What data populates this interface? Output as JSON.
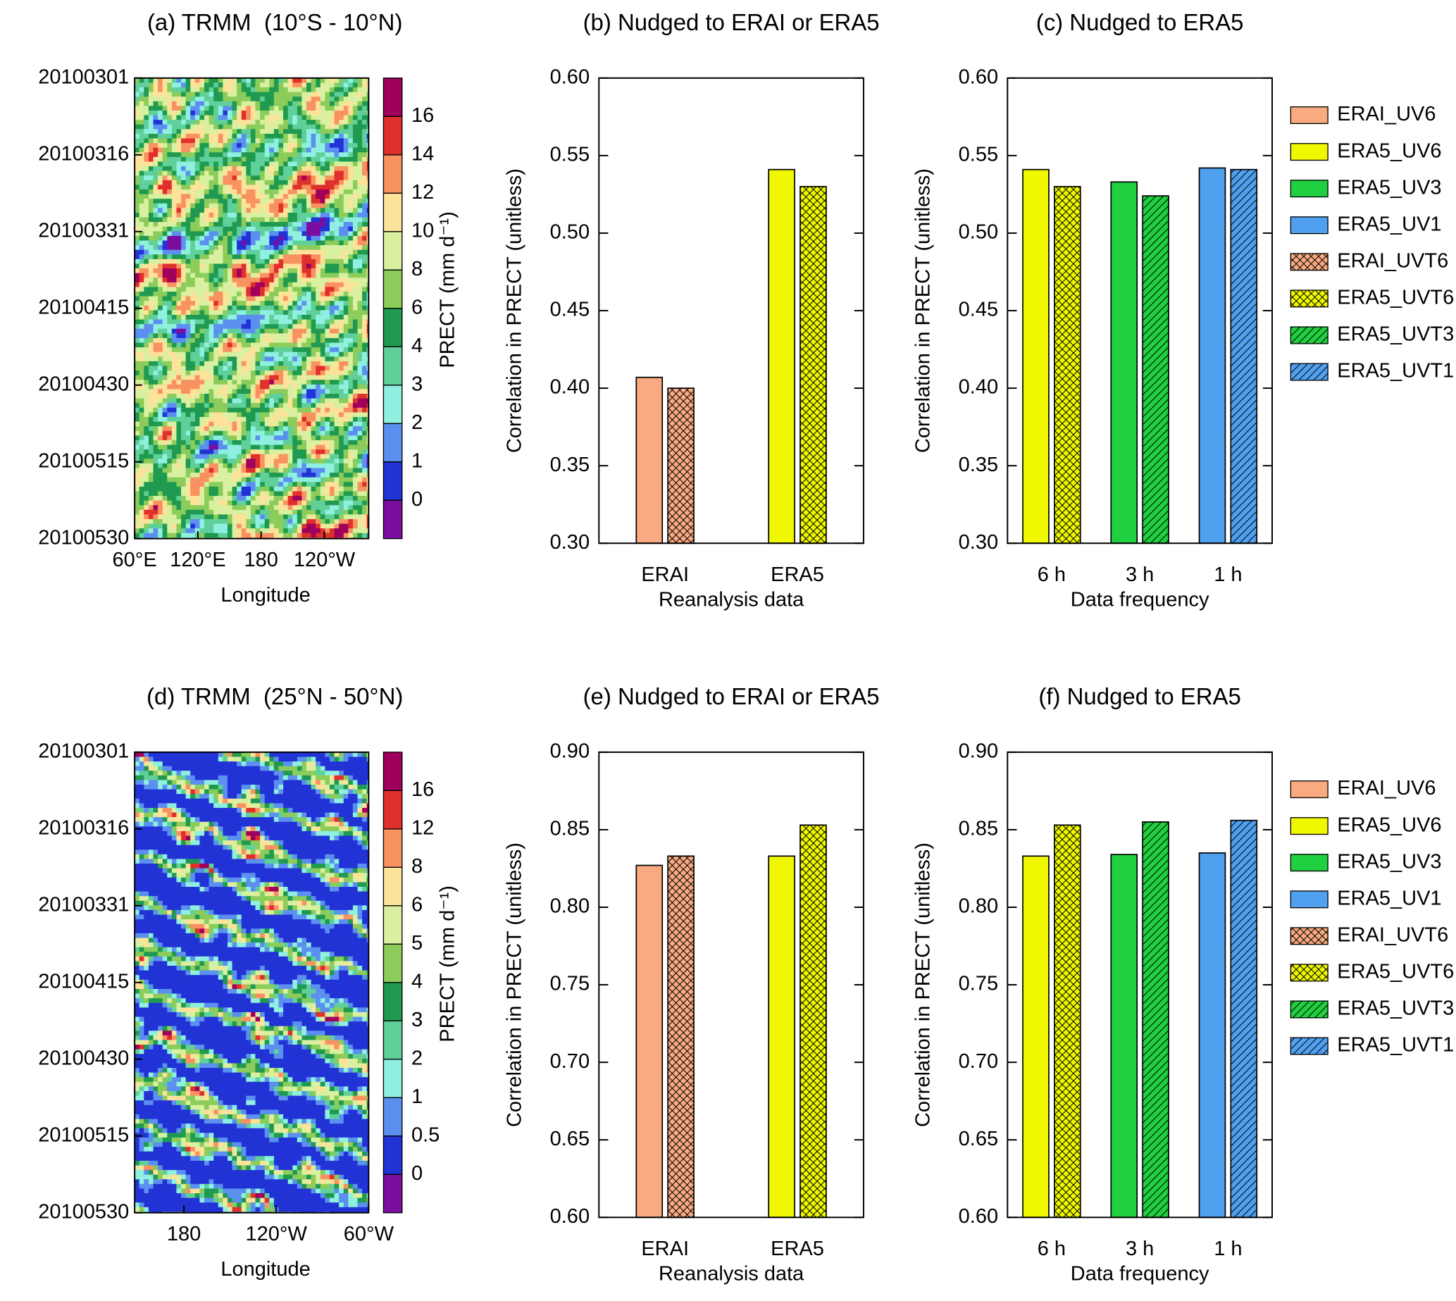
{
  "chart_data": [
    {
      "type": "heatmap",
      "title": "(a) TRMM  (10°S - 10°N)",
      "xlabel": "Longitude",
      "categories": [
        "20100301",
        "20100316",
        "20100331",
        "20100415",
        "20100430",
        "20100515",
        "20100530"
      ],
      "xlim": [
        60,
        282
      ],
      "xticks": [
        {
          "value": 60,
          "label": "60°E"
        },
        {
          "value": 120,
          "label": "120°E"
        },
        180,
        {
          "value": 240,
          "label": "120°W"
        }
      ],
      "colorbar_label": "PRECT (mm d⁻¹)",
      "colorbar_levels": [
        0,
        1,
        2,
        3,
        4,
        6,
        8,
        10,
        12,
        14,
        16
      ],
      "colorbar_colors": [
        "#7b0ea0",
        "#2233d6",
        "#5b8ff0",
        "#8ff0e0",
        "#60d09a",
        "#1f9a50",
        "#8ccc5a",
        "#d8f0a0",
        "#fde29a",
        "#f89260",
        "#e0302c",
        "#a0005c"
      ]
    },
    {
      "type": "bar",
      "title": "(b) Nudged to ERAI or ERA5",
      "xlabel": "Reanalysis data",
      "ylabel": "Correlation in PRECT (unitless)",
      "categories": [
        "ERAI",
        "ERA5"
      ],
      "ylim": [
        0.3,
        0.6
      ],
      "yticks": [
        {
          "value": 0.3,
          "label": "0.30"
        },
        0.35,
        {
          "value": 0.4,
          "label": "0.40"
        },
        0.45,
        {
          "value": 0.5,
          "label": "0.50"
        },
        0.55,
        {
          "value": 0.6,
          "label": "0.60"
        }
      ],
      "series": [
        {
          "name": "ERAI_UV6",
          "color": "#f9aa80",
          "hatch": null,
          "values": [
            0.407,
            null
          ]
        },
        {
          "name": "ERAI_UVT6",
          "color": "#f9aa80",
          "hatch": "cross",
          "values": [
            0.4,
            null
          ]
        },
        {
          "name": "ERA5_UV6",
          "color": "#f0f800",
          "hatch": null,
          "values": [
            null,
            0.541
          ]
        },
        {
          "name": "ERA5_UVT6",
          "color": "#f0f800",
          "hatch": "cross",
          "values": [
            null,
            0.53
          ]
        }
      ]
    },
    {
      "type": "bar",
      "title": "(c) Nudged to ERA5",
      "xlabel": "Data frequency",
      "ylabel": "Correlation in PRECT (unitless)",
      "categories": [
        "6 h",
        "3 h",
        "1 h"
      ],
      "legend": "right",
      "ylim": [
        0.3,
        0.6
      ],
      "yticks": [
        {
          "value": 0.3,
          "label": "0.30"
        },
        0.35,
        {
          "value": 0.4,
          "label": "0.40"
        },
        0.45,
        {
          "value": 0.5,
          "label": "0.50"
        },
        0.55,
        {
          "value": 0.6,
          "label": "0.60"
        }
      ],
      "series": [
        {
          "name": "ERAI_UV6",
          "color": "#f9aa80",
          "hatch": null,
          "values": [
            null,
            null,
            null
          ]
        },
        {
          "name": "ERA5_UV6",
          "color": "#f0f800",
          "hatch": null,
          "values": [
            0.541,
            null,
            null
          ]
        },
        {
          "name": "ERA5_UV3",
          "color": "#20d040",
          "hatch": null,
          "values": [
            null,
            0.533,
            null
          ]
        },
        {
          "name": "ERA5_UV1",
          "color": "#50a0f0",
          "hatch": null,
          "values": [
            null,
            null,
            0.542
          ]
        },
        {
          "name": "ERAI_UVT6",
          "color": "#f9aa80",
          "hatch": "cross",
          "values": [
            null,
            null,
            null
          ]
        },
        {
          "name": "ERA5_UVT6",
          "color": "#f0f800",
          "hatch": "cross",
          "values": [
            0.53,
            null,
            null
          ]
        },
        {
          "name": "ERA5_UVT3",
          "color": "#20d040",
          "hatch": "diagonal",
          "values": [
            null,
            0.524,
            null
          ]
        },
        {
          "name": "ERA5_UVT1",
          "color": "#50a0f0",
          "hatch": "diagonal",
          "values": [
            null,
            null,
            0.541
          ]
        }
      ]
    },
    {
      "type": "heatmap",
      "title": "(d) TRMM  (25°N - 50°N)",
      "xlabel": "Longitude",
      "categories": [
        "20100301",
        "20100316",
        "20100331",
        "20100415",
        "20100430",
        "20100515",
        "20100530"
      ],
      "xlim": [
        148,
        300
      ],
      "xticks": [
        180,
        {
          "value": 240,
          "label": "120°W"
        },
        {
          "value": 300,
          "label": "60°W"
        }
      ],
      "colorbar_label": "PRECT (mm d⁻¹)",
      "colorbar_levels": [
        0,
        0.5,
        1,
        2,
        3,
        4,
        5,
        6,
        8,
        12,
        16
      ],
      "colorbar_colors": [
        "#7b0ea0",
        "#2233d6",
        "#5b8ff0",
        "#8ff0e0",
        "#60d09a",
        "#1f9a50",
        "#8ccc5a",
        "#d8f0a0",
        "#fde29a",
        "#f89260",
        "#e0302c",
        "#a0005c"
      ]
    },
    {
      "type": "bar",
      "title": "(e) Nudged to ERAI or ERA5",
      "xlabel": "Reanalysis data",
      "ylabel": "Correlation in PRECT (unitless)",
      "categories": [
        "ERAI",
        "ERA5"
      ],
      "ylim": [
        0.6,
        0.9
      ],
      "yticks": [
        {
          "value": 0.6,
          "label": "0.60"
        },
        0.65,
        {
          "value": 0.7,
          "label": "0.70"
        },
        0.75,
        {
          "value": 0.8,
          "label": "0.80"
        },
        0.85,
        {
          "value": 0.9,
          "label": "0.90"
        }
      ],
      "series": [
        {
          "name": "ERAI_UV6",
          "color": "#f9aa80",
          "hatch": null,
          "values": [
            0.827,
            null
          ]
        },
        {
          "name": "ERAI_UVT6",
          "color": "#f9aa80",
          "hatch": "cross",
          "values": [
            0.833,
            null
          ]
        },
        {
          "name": "ERA5_UV6",
          "color": "#f0f800",
          "hatch": null,
          "values": [
            null,
            0.833
          ]
        },
        {
          "name": "ERA5_UVT6",
          "color": "#f0f800",
          "hatch": "cross",
          "values": [
            null,
            0.853
          ]
        }
      ]
    },
    {
      "type": "bar",
      "title": "(f) Nudged to ERA5",
      "xlabel": "Data frequency",
      "ylabel": "Correlation in PRECT (unitless)",
      "categories": [
        "6 h",
        "3 h",
        "1 h"
      ],
      "legend": "right",
      "ylim": [
        0.6,
        0.9
      ],
      "yticks": [
        {
          "value": 0.6,
          "label": "0.60"
        },
        0.65,
        {
          "value": 0.7,
          "label": "0.70"
        },
        0.75,
        {
          "value": 0.8,
          "label": "0.80"
        },
        0.85,
        {
          "value": 0.9,
          "label": "0.90"
        }
      ],
      "series": [
        {
          "name": "ERAI_UV6",
          "color": "#f9aa80",
          "hatch": null,
          "values": [
            null,
            null,
            null
          ]
        },
        {
          "name": "ERA5_UV6",
          "color": "#f0f800",
          "hatch": null,
          "values": [
            0.833,
            null,
            null
          ]
        },
        {
          "name": "ERA5_UV3",
          "color": "#20d040",
          "hatch": null,
          "values": [
            null,
            0.834,
            null
          ]
        },
        {
          "name": "ERA5_UV1",
          "color": "#50a0f0",
          "hatch": null,
          "values": [
            null,
            null,
            0.835
          ]
        },
        {
          "name": "ERAI_UVT6",
          "color": "#f9aa80",
          "hatch": "cross",
          "values": [
            null,
            null,
            null
          ]
        },
        {
          "name": "ERA5_UVT6",
          "color": "#f0f800",
          "hatch": "cross",
          "values": [
            0.853,
            null,
            null
          ]
        },
        {
          "name": "ERA5_UVT3",
          "color": "#20d040",
          "hatch": "diagonal",
          "values": [
            null,
            0.855,
            null
          ]
        },
        {
          "name": "ERA5_UVT1",
          "color": "#50a0f0",
          "hatch": "diagonal",
          "values": [
            null,
            null,
            0.856
          ]
        }
      ]
    }
  ]
}
